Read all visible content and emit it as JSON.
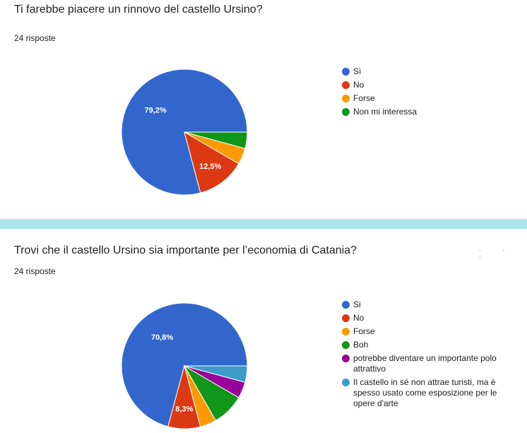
{
  "chart_data": [
    {
      "type": "pie",
      "title": "Ti farebbe piacere un rinnovo del castello Ursino?",
      "subtitle": "24 risposte",
      "legend_position": "right",
      "slices": [
        {
          "label": "Sì",
          "value": 79.2,
          "display": "79,2%",
          "color": "#3366cc"
        },
        {
          "label": "No",
          "value": 12.5,
          "display": "12,5%",
          "color": "#dc3912"
        },
        {
          "label": "Forse",
          "value": 4.2,
          "display": "",
          "color": "#ff9900"
        },
        {
          "label": "Non mi interessa",
          "value": 4.2,
          "display": "",
          "color": "#109618"
        }
      ]
    },
    {
      "type": "pie",
      "title": "Trovi che il castello Ursino sia importante per l’economia di Catania?",
      "subtitle": "24 risposte",
      "legend_position": "right",
      "slices": [
        {
          "label": "Si",
          "value": 70.8,
          "display": "70,8%",
          "color": "#3366cc"
        },
        {
          "label": "No",
          "value": 8.3,
          "display": "8,3%",
          "color": "#dc3912"
        },
        {
          "label": "Forse",
          "value": 4.2,
          "display": "",
          "color": "#ff9900"
        },
        {
          "label": "Boh",
          "value": 8.3,
          "display": "",
          "color": "#109618"
        },
        {
          "label": "potrebbe diventare un importante polo attrattivo",
          "value": 4.2,
          "display": "",
          "color": "#990099"
        },
        {
          "label": "Il castello in sé non attrae turisti, ma è spesso usato come esposizione per le opere d'arte",
          "value": 4.2,
          "display": "",
          "color": "#3b9ccc"
        }
      ]
    }
  ]
}
